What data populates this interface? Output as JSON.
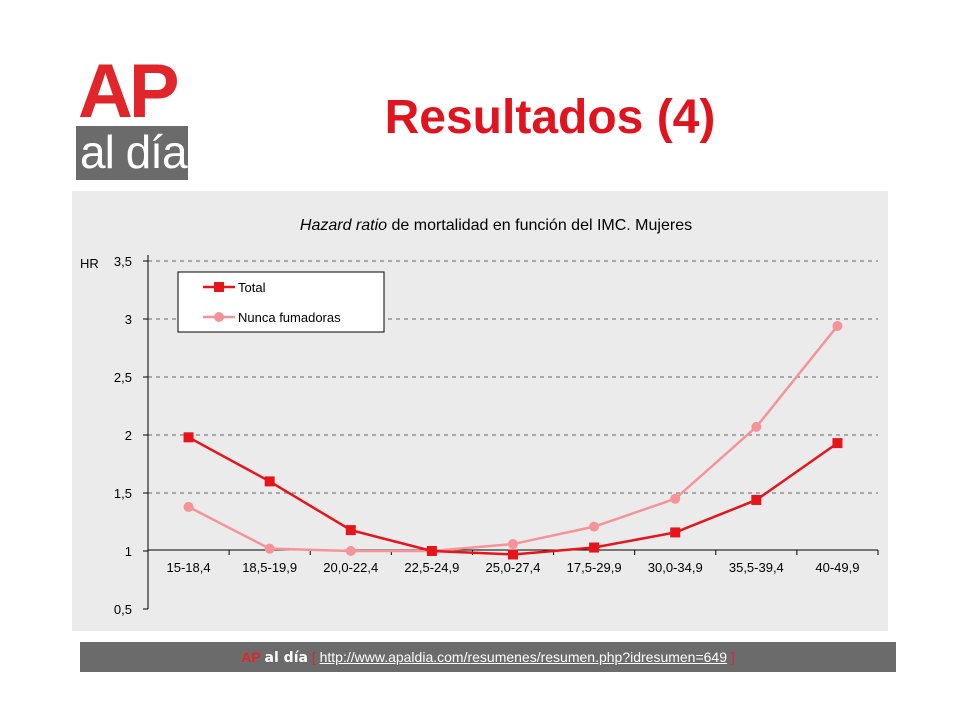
{
  "logo": {
    "ap": "AP",
    "aldia": "al día",
    "ap_color": "#e0262b",
    "box_color": "#6b6b6b"
  },
  "slide_title": "Resultados (4)",
  "chart_data": {
    "type": "line",
    "title_italic": "Hazard ratio",
    "title_rest": " de mortalidad en función del IMC. Mujeres",
    "ylabel": "HR",
    "xlabel": "",
    "ylim": [
      0.5,
      3.5
    ],
    "yticks": [
      0.5,
      1,
      1.5,
      2,
      2.5,
      3,
      3.5
    ],
    "ytick_labels": [
      "0,5",
      "1",
      "1,5",
      "2",
      "2,5",
      "3",
      "3,5"
    ],
    "grid": true,
    "legend_position": "top-left",
    "categories": [
      "15-18,4",
      "18,5-19,9",
      "20,0-22,4",
      "22,5-24,9",
      "25,0-27,4",
      "17,5-29,9",
      "30,0-34,9",
      "35,5-39,4",
      "40-49,9"
    ],
    "series": [
      {
        "name": "Total",
        "marker": "square",
        "color": "#e8141c",
        "values": [
          1.98,
          1.6,
          1.18,
          1.0,
          0.97,
          1.03,
          1.16,
          1.44,
          1.93
        ]
      },
      {
        "name": "Nunca fumadoras",
        "marker": "circle",
        "color": "#f4949a",
        "values": [
          1.38,
          1.02,
          1.0,
          1.0,
          1.06,
          1.21,
          1.45,
          2.07,
          2.94
        ]
      }
    ]
  },
  "footer": {
    "ap": "AP",
    "aldia": "al día",
    "bracket_open": "[",
    "url": "http://www.apaldia.com/resumenes/resumen.php?idresumen=649",
    "bracket_close": "]"
  }
}
